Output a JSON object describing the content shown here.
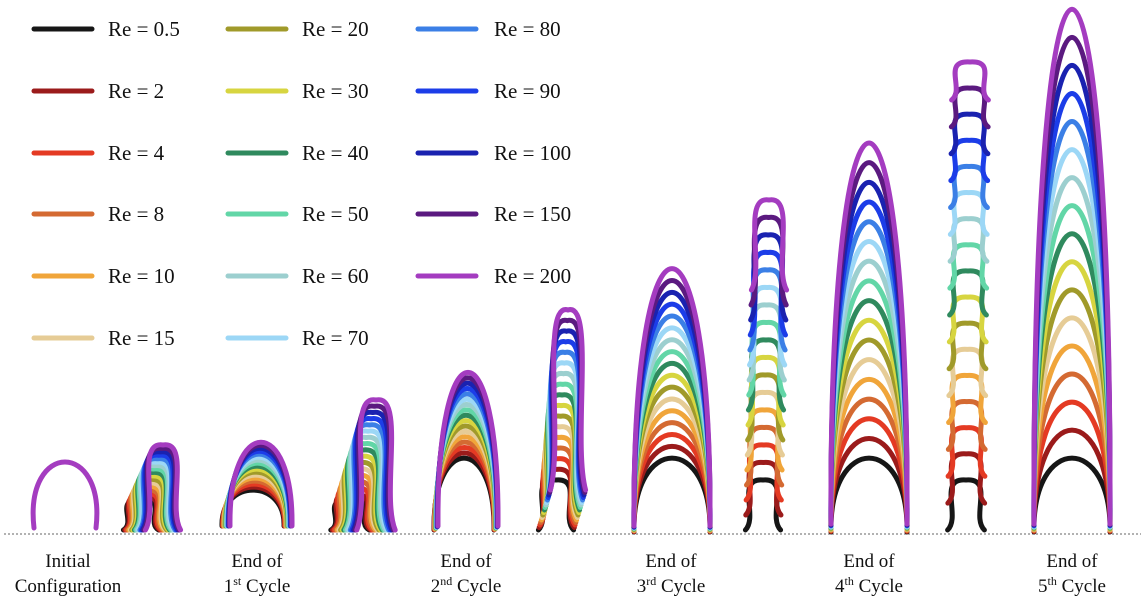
{
  "legend": [
    {
      "label": "Re = 0.5",
      "color": "#161616"
    },
    {
      "label": "Re = 2",
      "color": "#9b1b1b"
    },
    {
      "label": "Re = 4",
      "color": "#e43a23"
    },
    {
      "label": "Re = 8",
      "color": "#d46a32"
    },
    {
      "label": "Re = 10",
      "color": "#f0a53a"
    },
    {
      "label": "Re = 15",
      "color": "#e6cc96"
    },
    {
      "label": "Re = 20",
      "color": "#a09a2a"
    },
    {
      "label": "Re = 30",
      "color": "#d7d540"
    },
    {
      "label": "Re = 40",
      "color": "#2f8a5e"
    },
    {
      "label": "Re = 50",
      "color": "#62d6a7"
    },
    {
      "label": "Re = 60",
      "color": "#9ccfcf"
    },
    {
      "label": "Re = 70",
      "color": "#9cd7f6"
    },
    {
      "label": "Re = 80",
      "color": "#3b7fe6"
    },
    {
      "label": "Re = 90",
      "color": "#1c3de8"
    },
    {
      "label": "Re = 100",
      "color": "#1a22b0"
    },
    {
      "label": "Re = 150",
      "color": "#5b1a80"
    },
    {
      "label": "Re = 200",
      "color": "#a43cc0"
    }
  ],
  "captions": [
    {
      "line1": "Initial",
      "line2_main": "Configuration",
      "line2_sup": "",
      "line2_tail": ""
    },
    {
      "line1": "End of",
      "line2_main": "1",
      "line2_sup": "st",
      "line2_tail": " Cycle"
    },
    {
      "line1": "End of",
      "line2_main": "2",
      "line2_sup": "nd",
      "line2_tail": " Cycle"
    },
    {
      "line1": "End of",
      "line2_main": "3",
      "line2_sup": "rd",
      "line2_tail": " Cycle"
    },
    {
      "line1": "End of",
      "line2_main": "4",
      "line2_sup": "th",
      "line2_tail": " Cycle"
    },
    {
      "line1": "End of",
      "line2_main": "5",
      "line2_sup": "th",
      "line2_tail": " Cycle"
    }
  ],
  "initial_color": "#a43cc0"
}
